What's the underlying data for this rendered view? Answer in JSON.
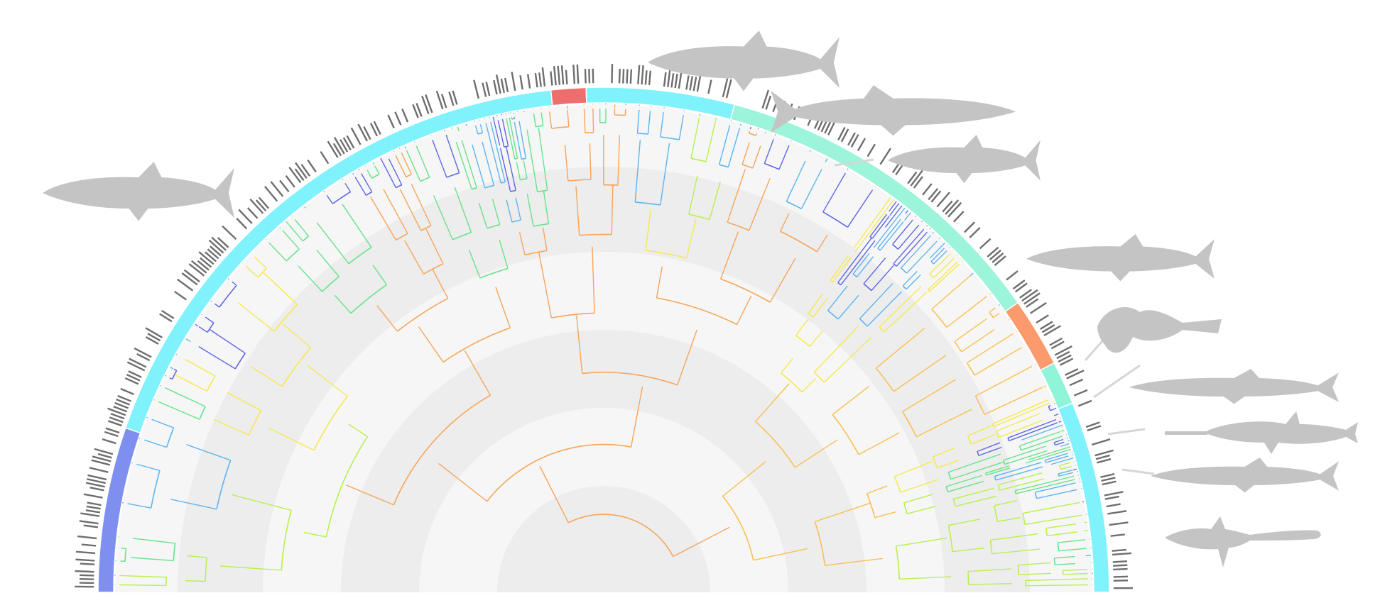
{
  "figure": {
    "background": "#ffffff",
    "description_colors": {
      "band_light": "#f6f6f6",
      "band_dark": "#ededed",
      "tick_color": "#6e6e6e",
      "silhouette_color": "#c4c4c4",
      "leader_color": "#d6d6d6"
    },
    "clade_ring": [
      {
        "clade": "clade-1",
        "color": "#7f8ff0",
        "span": [
          180,
          161
        ]
      },
      {
        "clade": "clade-2",
        "color": "#80f2fc",
        "span": [
          161,
          96
        ]
      },
      {
        "clade": "clade-3",
        "color": "#ee6e70",
        "span": [
          96,
          92
        ]
      },
      {
        "clade": "clade-4",
        "color": "#80f2fc",
        "span": [
          92,
          75
        ]
      },
      {
        "clade": "clade-5",
        "color": "#9cf5da",
        "span": [
          75,
          35
        ]
      },
      {
        "clade": "clade-6",
        "color": "#fb9a6c",
        "span": [
          35,
          27
        ]
      },
      {
        "clade": "clade-7",
        "color": "#90f4d8",
        "span": [
          27,
          22
        ]
      },
      {
        "clade": "clade-8",
        "color": "#80f2fc",
        "span": [
          22,
          0
        ]
      }
    ],
    "branch_palette": [
      "#5f67e5",
      "#5db4f2",
      "#68e28a",
      "#b8ef4f",
      "#f7e84f",
      "#fbbf52",
      "#f79645",
      "#f26a3b"
    ],
    "silhouettes": [
      {
        "name": "shark-left"
      },
      {
        "name": "shark-top-1"
      },
      {
        "name": "shark-top-2"
      },
      {
        "name": "shark-top-3"
      },
      {
        "name": "shark-right-1"
      },
      {
        "name": "angelshark"
      },
      {
        "name": "shark-right-2"
      },
      {
        "name": "sawshark"
      },
      {
        "name": "shark-right-3"
      },
      {
        "name": "thresher-shark"
      }
    ]
  }
}
